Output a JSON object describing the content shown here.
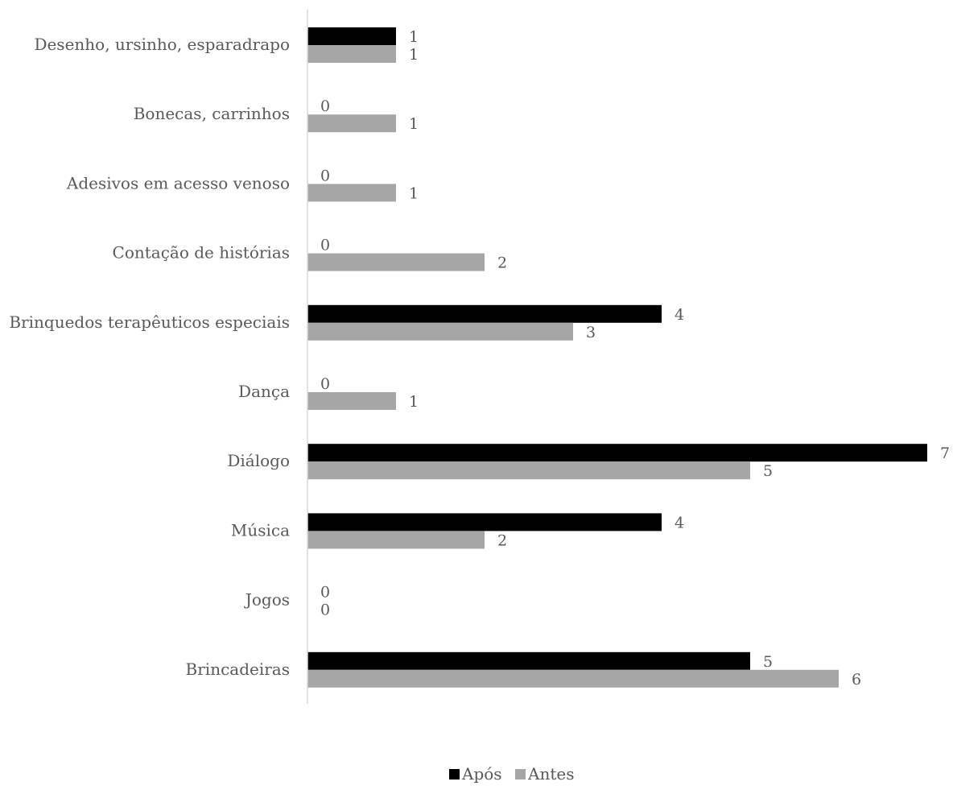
{
  "chart_data": {
    "type": "bar",
    "orientation": "horizontal",
    "categories": [
      "Desenho, ursinho, esparadrapo",
      "Bonecas, carrinhos",
      "Adesivos em acesso venoso",
      "Contação de histórias",
      "Brinquedos terapêuticos especiais",
      "Dança",
      "Diálogo",
      "Música",
      "Jogos",
      "Brincadeiras"
    ],
    "series": [
      {
        "name": "Após",
        "color": "#000000",
        "values": [
          1,
          0,
          0,
          0,
          4,
          0,
          7,
          4,
          0,
          5
        ]
      },
      {
        "name": "Antes",
        "color": "#a6a6a6",
        "values": [
          1,
          1,
          1,
          2,
          3,
          1,
          5,
          2,
          0,
          6
        ]
      }
    ],
    "xlim": [
      0,
      7
    ],
    "data_labels": true,
    "gridlines": false,
    "legend_position": "bottom"
  }
}
